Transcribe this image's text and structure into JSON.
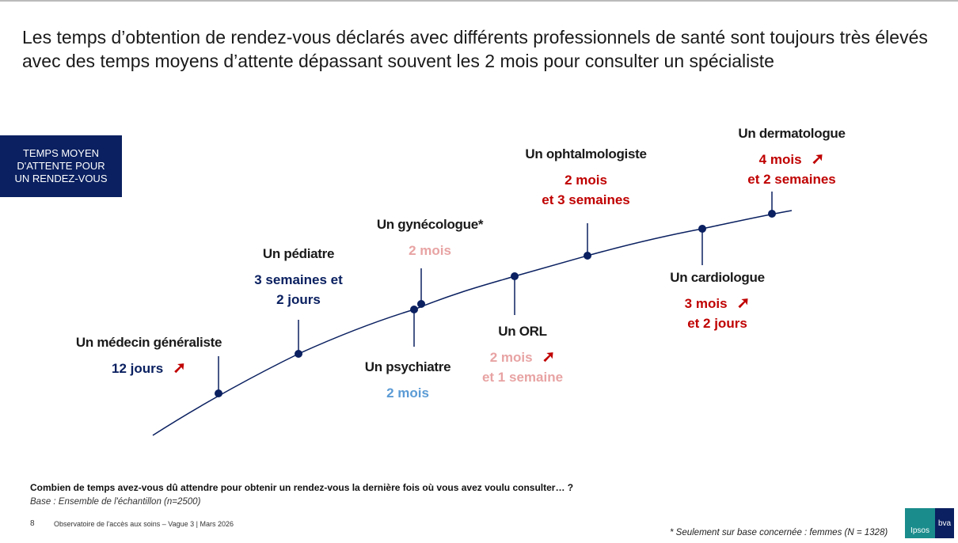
{
  "title": "Les temps d’obtention de rendez-vous déclarés avec différents professionnels de santé sont toujours très élevés avec des temps moyens d’attente dépassant souvent les 2 mois pour consulter un spécialiste",
  "box_label": "TEMPS MOYEN D'ATTENTE POUR UN RENDEZ-VOUS",
  "colors": {
    "navy": "#0a2060",
    "red": "#c00000",
    "pink": "#e8a3a3",
    "lightblue": "#5b9bd5"
  },
  "items": [
    {
      "name": "Un médecin généraliste",
      "value": "12 jours",
      "value2": "",
      "trend": "up-arrow-icon",
      "color": "#0a2060"
    },
    {
      "name": "Un pédiatre",
      "value": "3 semaines et",
      "value2": "2 jours",
      "trend": "",
      "color": "#0a2060"
    },
    {
      "name": "Un psychiatre",
      "value": "2 mois",
      "value2": "",
      "trend": "",
      "color": "#5b9bd5"
    },
    {
      "name": "Un gynécologue*",
      "value": "2 mois",
      "value2": "",
      "trend": "",
      "color": "#e8a3a3"
    },
    {
      "name": "Un ORL",
      "value": "2 mois",
      "value2": "et 1 semaine",
      "trend": "up-arrow-icon",
      "color": "#e8a3a3"
    },
    {
      "name": "Un ophtalmologiste",
      "value": "2 mois",
      "value2": "et 3 semaines",
      "trend": "",
      "color": "#c00000"
    },
    {
      "name": "Un cardiologue",
      "value": "3 mois",
      "value2": "et 2 jours",
      "trend": "up-arrow-icon",
      "color": "#c00000"
    },
    {
      "name": "Un dermatologue",
      "value": "4 mois",
      "value2": "et 2 semaines",
      "trend": "up-arrow-icon",
      "color": "#c00000"
    }
  ],
  "arrow_glyph": "➚",
  "question": "Combien de temps avez-vous dû attendre pour obtenir un rendez-vous la dernière fois où vous avez voulu consulter… ?",
  "base": "Base : Ensemble de l'échantillon (n=2500)",
  "page_number": "8",
  "source": "Observatoire de l'accès aux soins – Vague 3 | Mars 2026",
  "footnote": "* Seulement sur base concernée : femmes (N = 1328)",
  "logo": {
    "left": "Ipsos",
    "right": "bva"
  }
}
